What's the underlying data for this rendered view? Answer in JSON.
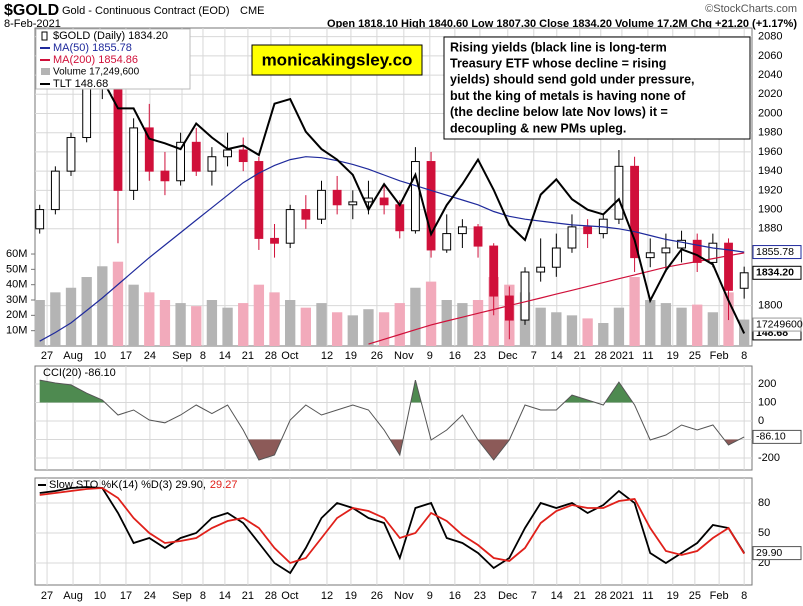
{
  "header": {
    "symbol": "$GOLD",
    "name": "Gold - Continuous Contract (EOD)",
    "exchange": "CME",
    "date": "8-Feb-2021",
    "quote": "Open 1818.10  High 1840.60  Low 1807.30  Close 1834.20  Volume 17.2M  Chg +21.20 (+1.17%)",
    "credit": "©StockCharts.com"
  },
  "chart_data": [
    {
      "type": "candlestick",
      "title": "$GOLD (Daily) 1834.20",
      "tag": "1834.20",
      "up_color": "#000000",
      "down_color": "#d0103a",
      "grid": true,
      "xlim": [
        -0.3,
        45.5
      ],
      "xticks": [
        {
          "value": 0.47,
          "label": "27"
        },
        {
          "value": 2.13,
          "label": "Aug"
        },
        {
          "value": 3.85,
          "label": "10"
        },
        {
          "value": 5.51,
          "label": "17"
        },
        {
          "value": 7.04,
          "label": "24"
        },
        {
          "value": 9.09,
          "label": "Sep"
        },
        {
          "value": 10.43,
          "label": "8"
        },
        {
          "value": 11.83,
          "label": "14"
        },
        {
          "value": 13.3,
          "label": "21"
        },
        {
          "value": 14.77,
          "label": "28"
        },
        {
          "value": 15.98,
          "label": "Oct"
        },
        {
          "value": 18.35,
          "label": "12"
        },
        {
          "value": 19.88,
          "label": "19"
        },
        {
          "value": 21.54,
          "label": "26"
        },
        {
          "value": 23.26,
          "label": "Nov"
        },
        {
          "value": 24.92,
          "label": "9"
        },
        {
          "value": 26.52,
          "label": "16"
        },
        {
          "value": 28.12,
          "label": "23"
        },
        {
          "value": 29.9,
          "label": "Dec"
        },
        {
          "value": 31.56,
          "label": "7"
        },
        {
          "value": 33.03,
          "label": "14"
        },
        {
          "value": 34.5,
          "label": "21"
        },
        {
          "value": 35.84,
          "label": "28"
        },
        {
          "value": 37.19,
          "label": "2021"
        },
        {
          "value": 38.85,
          "label": "11"
        },
        {
          "value": 40.44,
          "label": "19"
        },
        {
          "value": 41.85,
          "label": "25"
        },
        {
          "value": 43.4,
          "label": "Feb"
        },
        {
          "value": 45.0,
          "label": "8"
        }
      ],
      "ylim": [
        1758,
        2089
      ],
      "yticks": [
        1800,
        1880,
        1900,
        1920,
        1940,
        1960,
        1980,
        2000,
        2020,
        2040,
        2060,
        2080
      ],
      "y2lim": [
        147.6,
        174.9
      ],
      "open": [
        1880,
        1900,
        1940,
        1975,
        2030,
        2032,
        1920,
        1985,
        1940,
        1930,
        1970,
        1940,
        1955,
        1962,
        1950,
        1870,
        1865,
        1900,
        1890,
        1920,
        1905,
        1908,
        1912,
        1905,
        1878,
        1950,
        1858,
        1875,
        1882,
        1862,
        1810,
        1785,
        1835,
        1840,
        1860,
        1882,
        1875,
        1890,
        1945,
        1850,
        1855,
        1860,
        1868,
        1845,
        1865,
        1818.1
      ],
      "high": [
        1905,
        1945,
        1980,
        2040,
        2075,
        2040,
        1995,
        2010,
        1960,
        1980,
        1985,
        1965,
        1980,
        1975,
        1955,
        1885,
        1905,
        1915,
        1930,
        1935,
        1920,
        1930,
        1925,
        1910,
        1965,
        1960,
        1895,
        1890,
        1885,
        1865,
        1820,
        1840,
        1870,
        1875,
        1895,
        1890,
        1895,
        1962,
        1955,
        1870,
        1875,
        1878,
        1875,
        1875,
        1870,
        1840.6
      ],
      "low": [
        1875,
        1895,
        1935,
        1970,
        2015,
        1865,
        1910,
        1930,
        1915,
        1925,
        1935,
        1925,
        1945,
        1940,
        1858,
        1850,
        1860,
        1880,
        1885,
        1895,
        1890,
        1895,
        1895,
        1870,
        1875,
        1850,
        1855,
        1860,
        1850,
        1790,
        1765,
        1780,
        1825,
        1830,
        1855,
        1860,
        1870,
        1885,
        1835,
        1840,
        1835,
        1845,
        1835,
        1840,
        1785,
        1807.3
      ],
      "close": [
        1900,
        1940,
        1975,
        2030,
        2032,
        1920,
        1985,
        1940,
        1930,
        1970,
        1940,
        1955,
        1962,
        1950,
        1870,
        1865,
        1900,
        1890,
        1920,
        1905,
        1908,
        1912,
        1905,
        1878,
        1950,
        1858,
        1875,
        1882,
        1862,
        1810,
        1785,
        1835,
        1840,
        1860,
        1882,
        1875,
        1890,
        1945,
        1850,
        1855,
        1860,
        1868,
        1845,
        1865,
        1816,
        1834.2
      ],
      "series": [
        {
          "name": "MA(50) 1855.78",
          "color": "#1f2a9c",
          "tag": "1855.78",
          "values": [
            1763,
            1772,
            1782,
            1795,
            1808,
            1822,
            1836,
            1850,
            1863,
            1876,
            1889,
            1902,
            1915,
            1928,
            1938,
            1946,
            1952,
            1955,
            1954,
            1951,
            1947,
            1942,
            1936,
            1930,
            1925,
            1920,
            1915,
            1910,
            1905,
            1898,
            1893,
            1890,
            1888,
            1886,
            1884,
            1883,
            1882,
            1880,
            1877,
            1873,
            1869,
            1866,
            1863,
            1860,
            1858,
            1855.78
          ]
        },
        {
          "name": "MA(200) 1854.86",
          "color": "#d0103a",
          "values": [
            null,
            null,
            null,
            null,
            null,
            null,
            null,
            null,
            null,
            null,
            null,
            null,
            null,
            null,
            null,
            null,
            null,
            null,
            null,
            null,
            null,
            1760,
            1765,
            1770,
            1775,
            1780,
            1784,
            1788,
            1792,
            1796,
            1800,
            1804,
            1808,
            1812,
            1816,
            1820,
            1824,
            1828,
            1832,
            1836,
            1840,
            1843,
            1846,
            1849,
            1852,
            1854.86
          ]
        },
        {
          "name": "TLT 148.68",
          "color": "#000000",
          "axis": "y2",
          "tag": "148.68",
          "values": [
            170.1,
            170.8,
            171.4,
            171.5,
            170.5,
            168,
            168,
            165.4,
            165,
            164.5,
            166.7,
            165.5,
            164.5,
            164.8,
            164,
            168.4,
            168.8,
            166,
            164.5,
            163.6,
            162.3,
            159.3,
            161.5,
            159.7,
            162.3,
            157.2,
            159.7,
            161.5,
            163.6,
            161,
            158,
            156.7,
            160.6,
            161.9,
            160.2,
            159.3,
            158.9,
            160.2,
            156.7,
            151.5,
            154.1,
            155.9,
            155.4,
            154.6,
            151.5,
            148.68
          ]
        }
      ],
      "volume": {
        "name": "Volume 17,249,600",
        "tag": "17249600",
        "up_color": "#b4b4b4",
        "down_color": "#f2aabb",
        "ylim": [
          0,
          62
        ],
        "yticks": [
          {
            "value": 10,
            "label": "10M"
          },
          {
            "value": 20,
            "label": "20M"
          },
          {
            "value": 30,
            "label": "30M"
          },
          {
            "value": 40,
            "label": "40M"
          },
          {
            "value": 50,
            "label": "50M"
          },
          {
            "value": 60,
            "label": "60M"
          }
        ],
        "values": [
          30,
          35,
          38,
          45,
          52,
          55,
          40,
          35,
          30,
          28,
          26,
          30,
          25,
          28,
          40,
          35,
          30,
          25,
          28,
          22,
          20,
          24,
          22,
          28,
          38,
          42,
          30,
          28,
          30,
          45,
          40,
          35,
          25,
          22,
          20,
          18,
          15,
          25,
          45,
          30,
          28,
          25,
          27,
          22,
          35,
          17.2496
        ]
      },
      "annotations": {
        "brand": "monicakingsley.co",
        "note": [
          "Rising yields (black line is long-term",
          "Treasury ETF whose decline = rising",
          "yields) should send gold under pressure,",
          "but the king of metals is having none of",
          "(the decline below late Nov lows) it =",
          "decoupling & new PMs upleg."
        ]
      }
    },
    {
      "type": "line",
      "title": "CCI(20) -86.10",
      "tag": "-86.10",
      "ylim": [
        -265,
        297
      ],
      "yticks": [
        200,
        100,
        0,
        -100,
        -200
      ],
      "overbought": 100,
      "oversold": -100,
      "overbought_color": "#4e8a50",
      "oversold_color": "#8c5a58",
      "series": [
        {
          "color": "#555555",
          "values": [
            221,
            205,
            195,
            150,
            113,
            32,
            59,
            5,
            -10,
            32,
            86,
            40,
            86,
            -49,
            -211,
            -184,
            5,
            86,
            32,
            59,
            86,
            59,
            -49,
            -184,
            221,
            -103,
            -49,
            32,
            -103,
            -211,
            -103,
            86,
            59,
            59,
            140,
            113,
            86,
            210,
            86,
            -103,
            -76,
            -22,
            -49,
            -22,
            -130,
            -86.1
          ]
        }
      ]
    },
    {
      "type": "line",
      "ylim": [
        -2,
        105
      ],
      "yticks": [
        80,
        50,
        20
      ],
      "series": [
        {
          "name": "Slow STO %K(14) %D(3) 29.90,",
          "color": "#000000",
          "tag": "29.90",
          "values": [
            90,
            92,
            95,
            96,
            95,
            70,
            40,
            45,
            35,
            45,
            50,
            65,
            70,
            60,
            40,
            20,
            10,
            35,
            65,
            80,
            75,
            65,
            60,
            25,
            75,
            80,
            45,
            40,
            30,
            15,
            25,
            55,
            80,
            75,
            80,
            70,
            78,
            92,
            80,
            30,
            20,
            30,
            40,
            58,
            55,
            29.9
          ]
        },
        {
          "name": "29.27",
          "color": "#e0201a",
          "values": [
            88,
            90,
            92,
            94,
            95,
            85,
            65,
            50,
            40,
            42,
            45,
            55,
            62,
            65,
            55,
            35,
            20,
            25,
            45,
            65,
            75,
            72,
            65,
            45,
            50,
            70,
            62,
            48,
            38,
            25,
            22,
            35,
            60,
            72,
            78,
            75,
            75,
            82,
            84,
            55,
            32,
            28,
            32,
            45,
            55,
            29.27
          ]
        }
      ]
    }
  ]
}
